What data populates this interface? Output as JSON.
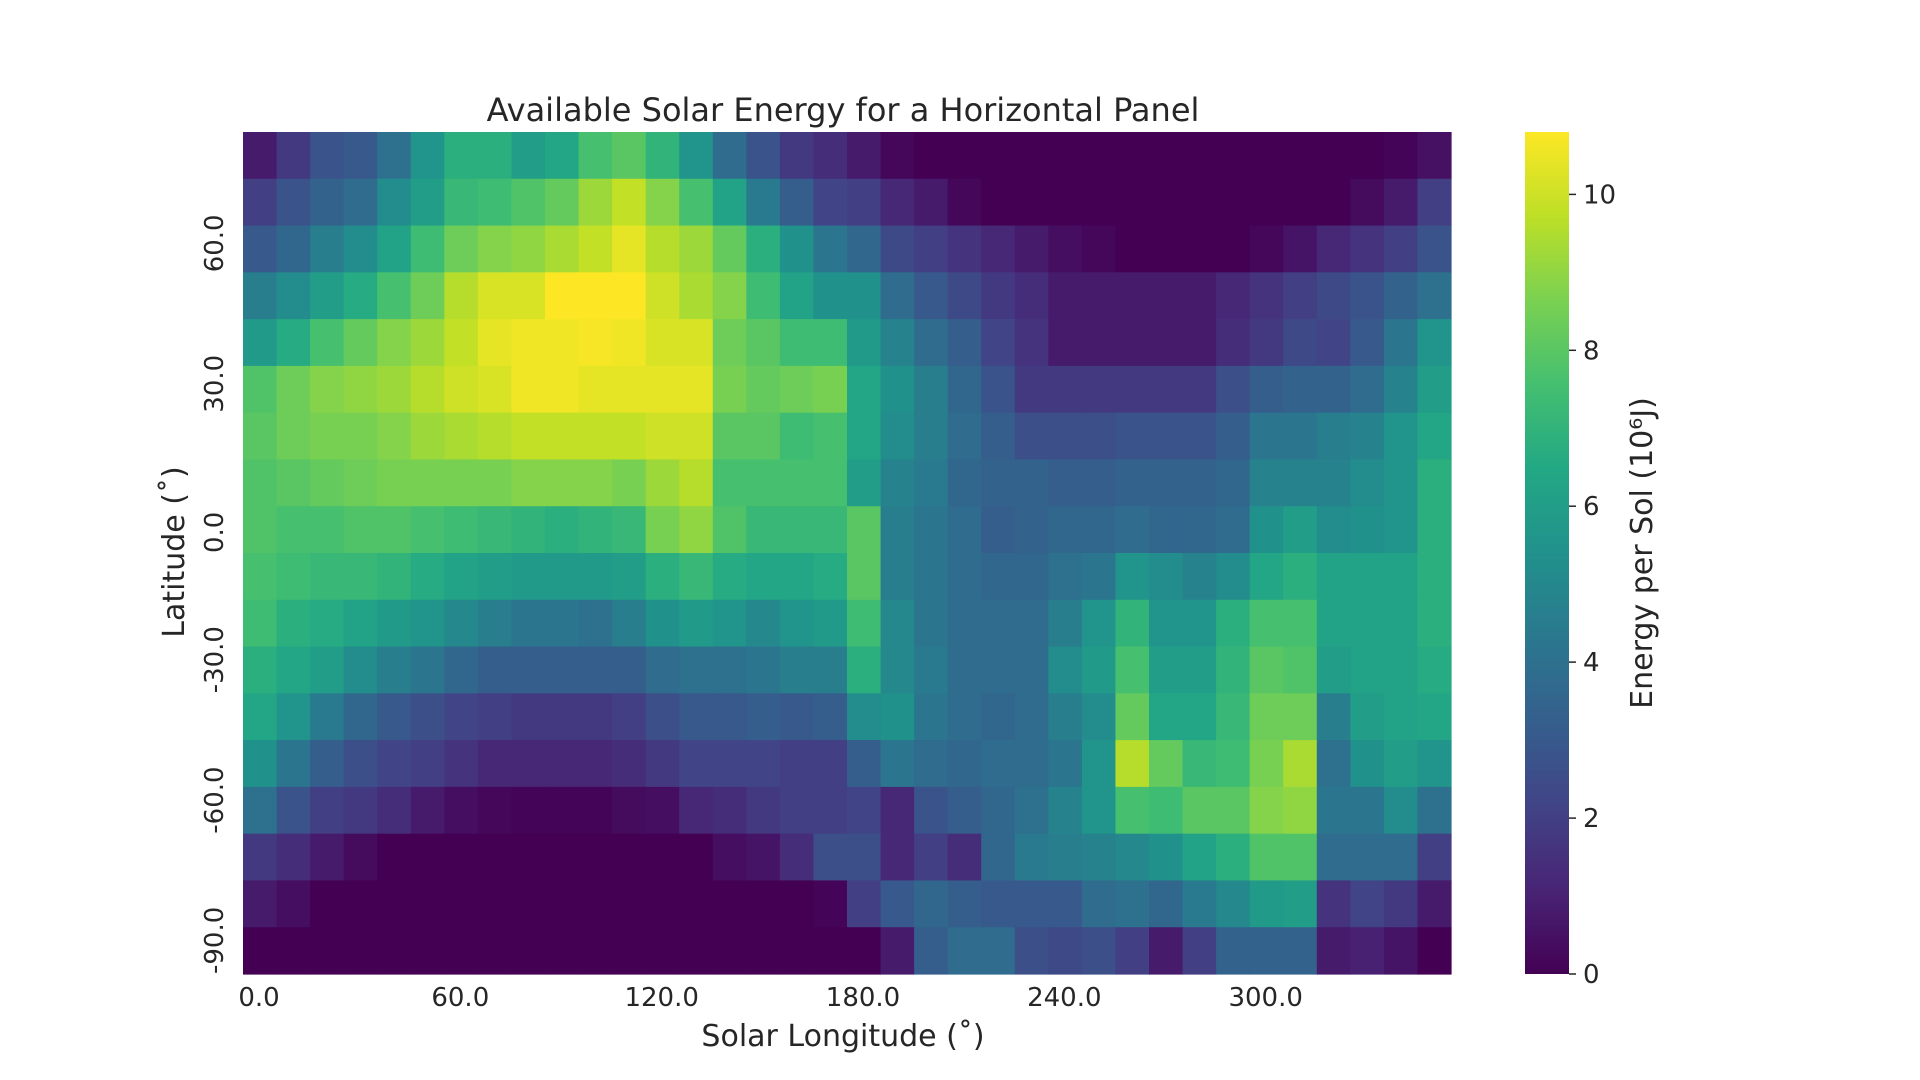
{
  "chart_data": {
    "type": "heatmap",
    "title": "Available Solar Energy for a Horizontal Panel",
    "xlabel": "Solar Longitude (˚)",
    "ylabel": "Latitude (˚)",
    "colorbar_label": "Energy per Sol (10⁶J)",
    "colormap": "viridis",
    "zlim": [
      0,
      10.8
    ],
    "x_tick_labels": [
      "0.0",
      "60.0",
      "120.0",
      "180.0",
      "240.0",
      "300.0"
    ],
    "x_tick_values": [
      0,
      60,
      120,
      180,
      240,
      300
    ],
    "y_tick_labels": [
      "60.0",
      "30.0",
      "0.0",
      "-30.0",
      "-60.0",
      "-90.0"
    ],
    "y_tick_values": [
      60,
      30,
      0,
      -30,
      -60,
      -90
    ],
    "colorbar_ticks": [
      "0",
      "2",
      "4",
      "6",
      "8",
      "10"
    ],
    "colorbar_tick_values": [
      0,
      2,
      4,
      6,
      8,
      10
    ],
    "x_values": [
      0,
      10,
      20,
      30,
      40,
      50,
      60,
      70,
      80,
      90,
      100,
      110,
      120,
      130,
      140,
      150,
      160,
      170,
      180,
      190,
      200,
      210,
      220,
      230,
      240,
      250,
      260,
      270,
      280,
      290,
      300,
      310,
      320,
      330,
      340,
      350
    ],
    "y_values": [
      80,
      70,
      60,
      50,
      40,
      30,
      20,
      10,
      0,
      -10,
      -20,
      -30,
      -40,
      -50,
      -60,
      -70,
      -80,
      -90
    ],
    "z": [
      [
        0.8,
        1.8,
        2.8,
        3.0,
        4.0,
        5.6,
        6.8,
        6.8,
        6.0,
        6.4,
        7.6,
        8.0,
        7.0,
        5.6,
        3.8,
        2.8,
        1.8,
        1.4,
        0.8,
        0.2,
        0,
        0,
        0,
        0,
        0,
        0,
        0,
        0,
        0,
        0,
        0,
        0,
        0,
        0,
        0.1,
        0.5
      ],
      [
        2.0,
        2.8,
        3.4,
        3.8,
        5.2,
        6.0,
        7.2,
        7.4,
        7.8,
        8.2,
        9.2,
        9.8,
        8.8,
        7.6,
        6.2,
        4.4,
        3.2,
        2.2,
        2.0,
        1.2,
        0.8,
        0.2,
        0,
        0,
        0,
        0,
        0,
        0,
        0,
        0,
        0,
        0,
        0,
        0.3,
        0.8,
        2.0
      ],
      [
        3.0,
        3.6,
        4.6,
        5.2,
        6.2,
        7.4,
        8.4,
        8.8,
        9.0,
        9.4,
        9.8,
        10.4,
        9.6,
        9.2,
        8.2,
        6.8,
        5.4,
        4.2,
        3.6,
        2.4,
        2.0,
        1.6,
        1.2,
        0.8,
        0.4,
        0.2,
        0,
        0,
        0,
        0,
        0.2,
        0.6,
        1.2,
        1.6,
        2.0,
        2.8
      ],
      [
        4.6,
        5.2,
        6.0,
        6.6,
        7.6,
        8.4,
        9.6,
        10.2,
        10.2,
        10.8,
        10.8,
        10.8,
        10.0,
        9.4,
        8.8,
        7.4,
        6.2,
        5.4,
        5.4,
        3.8,
        3.0,
        2.4,
        1.8,
        1.4,
        0.8,
        0.8,
        0.8,
        0.8,
        0.8,
        1.2,
        1.6,
        2.0,
        2.4,
        2.8,
        3.4,
        4.0
      ],
      [
        5.8,
        6.6,
        7.6,
        8.2,
        8.8,
        9.2,
        9.8,
        10.4,
        10.6,
        10.6,
        10.7,
        10.6,
        10.2,
        10.2,
        8.4,
        8.0,
        7.4,
        7.4,
        5.8,
        4.8,
        3.8,
        3.2,
        2.2,
        1.6,
        0.8,
        0.8,
        0.8,
        0.8,
        0.8,
        1.4,
        1.8,
        2.4,
        2.2,
        3.0,
        4.2,
        5.6
      ],
      [
        7.8,
        8.4,
        8.8,
        9.0,
        9.2,
        9.6,
        10.0,
        10.2,
        10.6,
        10.6,
        10.4,
        10.4,
        10.4,
        10.4,
        8.6,
        8.2,
        8.4,
        8.6,
        6.4,
        5.4,
        4.6,
        3.6,
        2.8,
        1.8,
        1.8,
        1.8,
        1.8,
        1.8,
        1.8,
        2.6,
        3.2,
        3.4,
        3.4,
        3.8,
        4.8,
        6.0
      ],
      [
        8.0,
        8.4,
        8.6,
        8.6,
        8.8,
        9.2,
        9.4,
        9.6,
        9.8,
        9.8,
        9.8,
        9.8,
        10.0,
        10.0,
        8.0,
        8.0,
        7.4,
        7.6,
        6.4,
        5.2,
        4.6,
        3.8,
        3.2,
        2.6,
        2.6,
        2.6,
        2.8,
        2.8,
        2.8,
        3.2,
        4.2,
        4.2,
        4.6,
        4.8,
        5.6,
        6.4
      ],
      [
        7.8,
        8.0,
        8.2,
        8.4,
        8.6,
        8.6,
        8.6,
        8.6,
        8.8,
        8.8,
        8.8,
        8.6,
        9.2,
        9.6,
        7.6,
        7.6,
        7.6,
        7.6,
        6.0,
        4.8,
        4.4,
        3.6,
        3.4,
        3.4,
        3.2,
        3.2,
        3.4,
        3.4,
        3.4,
        3.6,
        4.8,
        4.8,
        4.8,
        5.2,
        5.6,
        6.8
      ],
      [
        7.8,
        7.6,
        7.6,
        7.8,
        7.8,
        7.6,
        7.4,
        7.2,
        7.0,
        6.8,
        7.0,
        7.2,
        8.6,
        9.0,
        7.8,
        7.2,
        7.2,
        7.2,
        8.0,
        4.6,
        4.2,
        3.8,
        3.2,
        3.4,
        3.6,
        3.6,
        3.8,
        3.6,
        3.6,
        3.8,
        5.4,
        6.0,
        5.2,
        5.4,
        5.6,
        6.8
      ],
      [
        7.6,
        7.4,
        7.2,
        7.2,
        7.0,
        6.6,
        6.2,
        6.0,
        5.8,
        5.8,
        5.8,
        6.0,
        6.8,
        7.2,
        6.6,
        6.4,
        6.4,
        6.6,
        8.0,
        4.6,
        4.2,
        3.8,
        3.6,
        3.6,
        4.0,
        4.2,
        5.6,
        5.2,
        4.8,
        5.2,
        6.4,
        6.8,
        6.2,
        6.2,
        6.2,
        6.8
      ],
      [
        7.4,
        6.8,
        6.6,
        6.2,
        5.8,
        5.6,
        5.0,
        4.6,
        4.2,
        4.2,
        4.0,
        4.6,
        5.4,
        5.8,
        5.6,
        5.0,
        5.6,
        5.8,
        7.4,
        5.0,
        4.2,
        3.8,
        3.8,
        3.8,
        4.6,
        5.6,
        7.0,
        5.6,
        5.6,
        6.8,
        7.6,
        7.6,
        6.2,
        6.2,
        6.2,
        6.8
      ],
      [
        6.8,
        6.4,
        6.0,
        5.2,
        4.6,
        4.2,
        3.6,
        3.2,
        3.2,
        3.2,
        3.2,
        3.2,
        3.8,
        4.0,
        4.0,
        4.2,
        4.6,
        4.6,
        6.8,
        5.0,
        4.4,
        3.8,
        3.8,
        3.8,
        5.2,
        5.8,
        7.6,
        6.0,
        6.0,
        7.0,
        8.0,
        7.8,
        6.0,
        6.2,
        6.2,
        6.6
      ],
      [
        6.4,
        5.6,
        4.4,
        3.6,
        3.0,
        2.6,
        2.2,
        2.0,
        1.8,
        1.8,
        1.8,
        2.0,
        2.6,
        3.0,
        3.0,
        3.2,
        3.0,
        3.2,
        5.2,
        5.4,
        4.2,
        3.8,
        3.6,
        3.8,
        4.6,
        5.2,
        8.2,
        6.4,
        6.4,
        7.2,
        8.4,
        8.4,
        4.6,
        6.0,
        6.2,
        6.4
      ],
      [
        5.4,
        4.2,
        3.2,
        2.6,
        2.2,
        2.0,
        1.6,
        1.2,
        1.2,
        1.2,
        1.2,
        1.4,
        1.8,
        2.2,
        2.2,
        2.2,
        2.0,
        2.0,
        3.2,
        4.2,
        3.8,
        3.6,
        3.8,
        3.8,
        4.2,
        5.6,
        9.6,
        8.2,
        7.2,
        7.4,
        8.6,
        9.4,
        4.0,
        5.4,
        6.0,
        5.6
      ],
      [
        4.0,
        2.8,
        2.0,
        1.8,
        1.4,
        0.8,
        0.4,
        0.2,
        0.1,
        0.1,
        0.1,
        0.3,
        0.4,
        1.2,
        1.4,
        1.8,
        2.0,
        2.0,
        2.2,
        1.2,
        2.8,
        3.2,
        3.6,
        4.0,
        4.8,
        5.6,
        7.6,
        7.4,
        8.0,
        8.0,
        8.8,
        9.0,
        4.2,
        4.2,
        5.2,
        4.0
      ],
      [
        1.8,
        1.4,
        0.8,
        0.3,
        0,
        0,
        0,
        0,
        0,
        0,
        0,
        0,
        0,
        0,
        0.4,
        0.6,
        1.4,
        2.6,
        2.6,
        1.2,
        2.0,
        1.4,
        3.6,
        4.4,
        4.6,
        4.8,
        5.0,
        5.4,
        6.2,
        6.8,
        7.8,
        7.8,
        3.8,
        3.8,
        3.8,
        2.0
      ],
      [
        0.8,
        0.4,
        0,
        0,
        0,
        0,
        0,
        0,
        0,
        0,
        0,
        0,
        0,
        0,
        0,
        0,
        0,
        0.1,
        2.0,
        3.0,
        3.6,
        3.2,
        3.0,
        3.0,
        3.0,
        3.8,
        4.0,
        3.6,
        4.4,
        5.0,
        5.8,
        6.0,
        1.6,
        2.2,
        1.8,
        0.8
      ],
      [
        0,
        0,
        0,
        0,
        0,
        0,
        0,
        0,
        0,
        0,
        0,
        0,
        0,
        0,
        0,
        0,
        0,
        0,
        0,
        0.8,
        3.2,
        3.8,
        3.8,
        2.6,
        2.4,
        2.6,
        2.0,
        0.8,
        2.0,
        3.4,
        3.4,
        3.4,
        0.8,
        1.0,
        0.6,
        0
      ]
    ]
  }
}
